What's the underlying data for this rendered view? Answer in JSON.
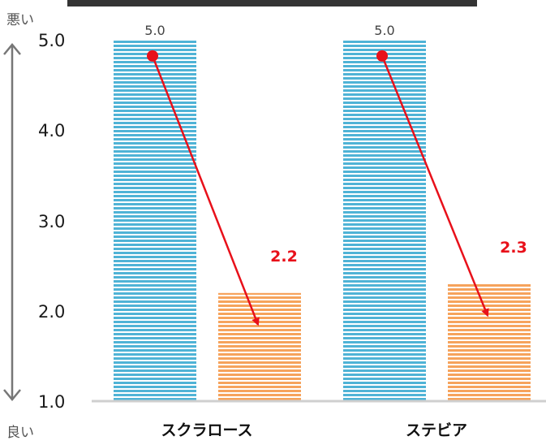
{
  "chart_data": {
    "type": "bar",
    "title": "",
    "xlabel": "",
    "ylabel": "",
    "ylim": [
      1.0,
      5.0
    ],
    "yticks": [
      "1.0",
      "2.0",
      "3.0",
      "4.0",
      "5.0"
    ],
    "categories": [
      "スクラロース",
      "ステビア"
    ],
    "series": [
      {
        "values": [
          5.0,
          5.0
        ],
        "color": "#4fb3d6",
        "label_color": "#444444"
      },
      {
        "values": [
          2.2,
          2.3
        ],
        "color": "#f6a35c",
        "label_color": "#e8101a"
      }
    ],
    "axis_top_label": "悪い",
    "axis_bottom_label": "良い",
    "arrow_color": "#e8101a",
    "grid": false,
    "legend": "none"
  }
}
